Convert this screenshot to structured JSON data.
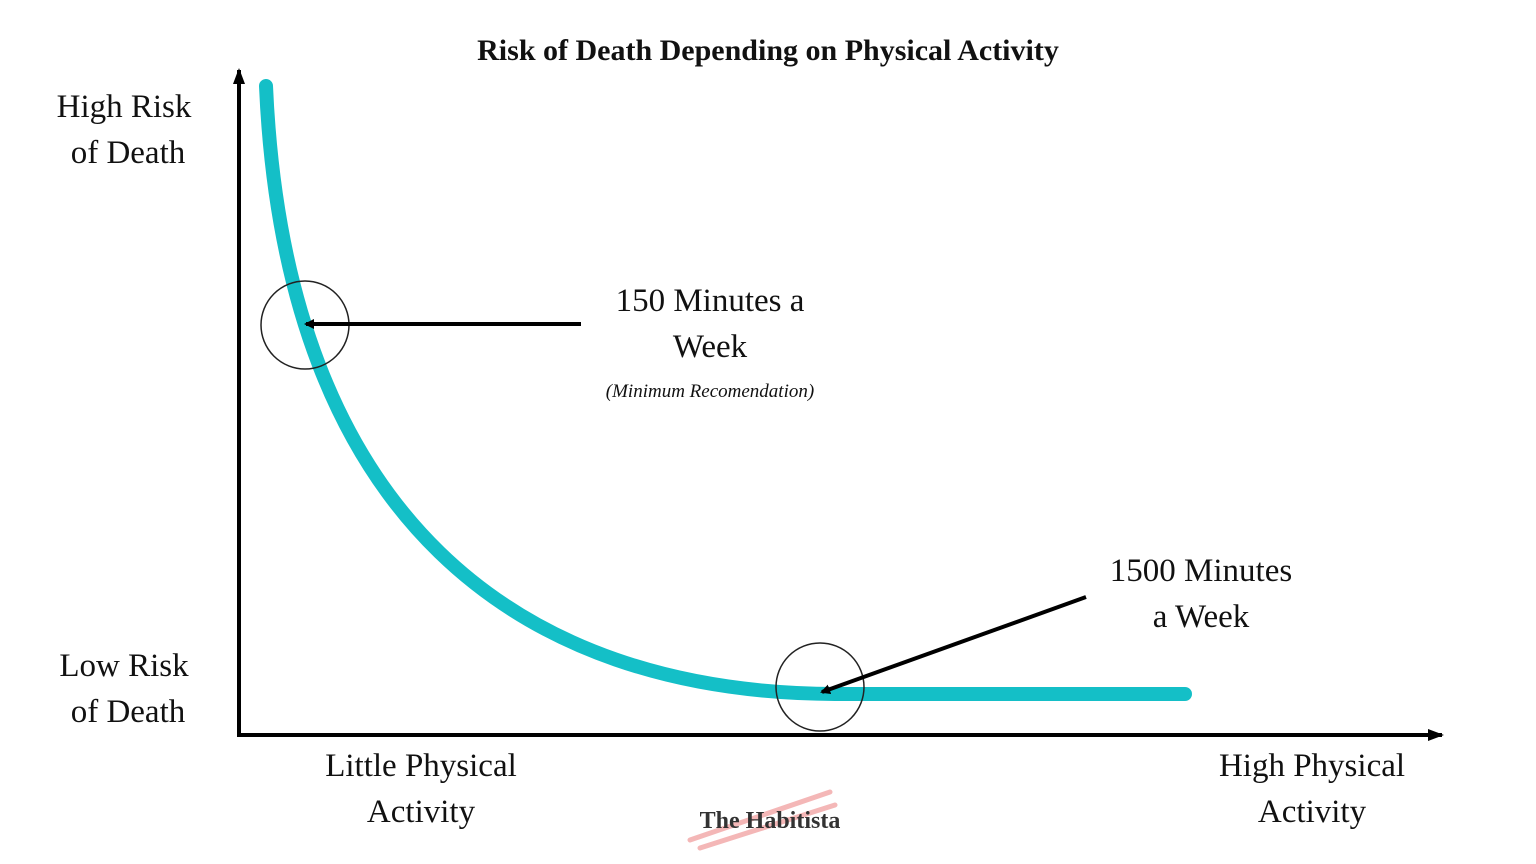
{
  "title": "Risk of Death Depending on Physical Activity",
  "y_axis": {
    "high": [
      "High Risk",
      "of Death"
    ],
    "low": [
      "Low Risk",
      "of Death"
    ]
  },
  "x_axis": {
    "low": [
      "Little Physical",
      "Activity"
    ],
    "high": [
      "High Physical",
      "Activity"
    ]
  },
  "annotations": [
    {
      "lines": [
        "150 Minutes a",
        "Week"
      ],
      "note": "(Minimum Recomendation)"
    },
    {
      "lines": [
        "1500 Minutes",
        "a Week"
      ]
    }
  ],
  "watermark": "The Habitista"
}
